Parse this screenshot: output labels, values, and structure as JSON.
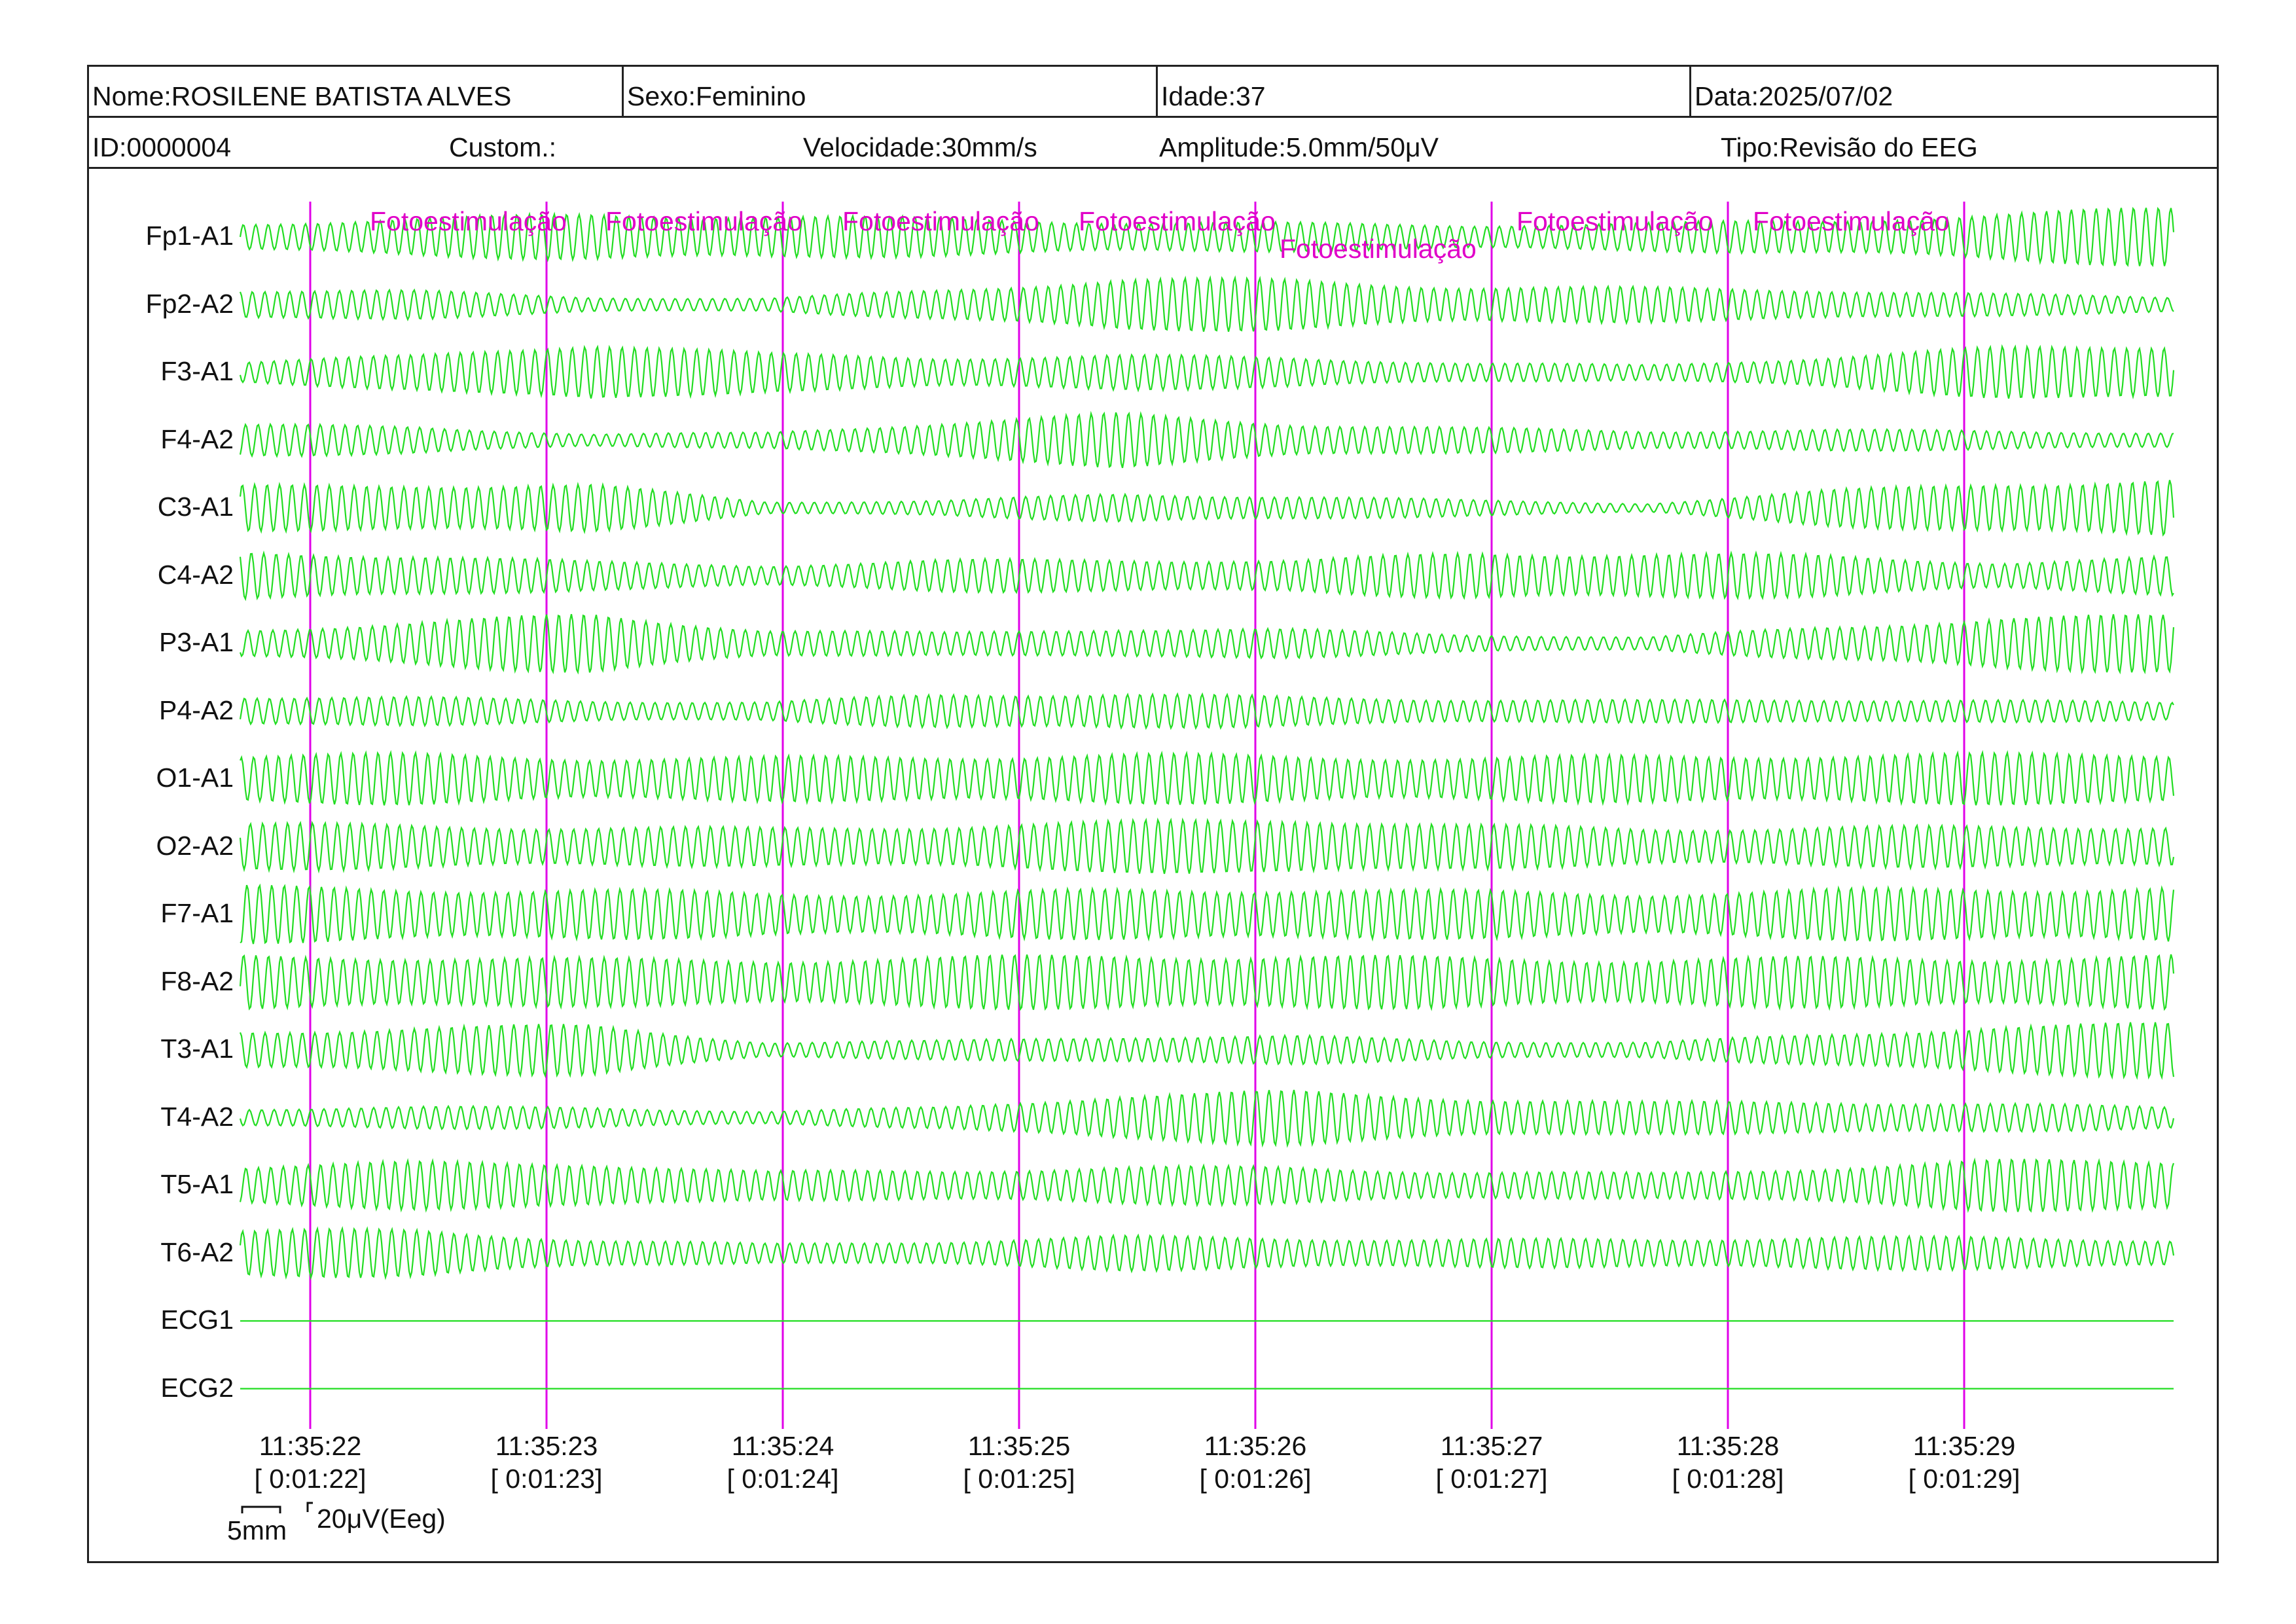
{
  "header": {
    "nome": "Nome:ROSILENE BATISTA ALVES",
    "sexo": "Sexo:Feminino",
    "idade": "Idade:37",
    "data": "Data:2025/07/02",
    "id": "ID:0000004",
    "custom": "Custom.:",
    "velocidade": "Velocidade:30mm/s",
    "amplitude": "Amplitude:5.0mm/50μV",
    "tipo": "Tipo:Revisão do EEG"
  },
  "channels": [
    {
      "label": "Fp1-A1",
      "amp": [
        0.45,
        0.6,
        0.75,
        0.7,
        0.6,
        0.5,
        0.45,
        0.4,
        0.45,
        0.55,
        0.75,
        0.95
      ]
    },
    {
      "label": "Fp2-A2",
      "amp": [
        0.5,
        0.45,
        0.25,
        0.2,
        0.5,
        0.85,
        0.8,
        0.6,
        0.55,
        0.5,
        0.35,
        0.25
      ]
    },
    {
      "label": "F3-A1",
      "amp": [
        0.35,
        0.55,
        1.0,
        0.6,
        0.5,
        0.55,
        0.5,
        0.3,
        0.25,
        0.5,
        0.8,
        0.95
      ]
    },
    {
      "label": "F4-A2",
      "amp": [
        0.5,
        0.45,
        0.2,
        0.25,
        0.6,
        0.85,
        0.55,
        0.4,
        0.3,
        0.35,
        0.3,
        0.25
      ]
    },
    {
      "label": "C3-A1",
      "amp": [
        0.7,
        0.8,
        0.75,
        0.2,
        0.25,
        0.45,
        0.4,
        0.25,
        0.15,
        0.55,
        0.85,
        0.9
      ]
    },
    {
      "label": "C4-A2",
      "amp": [
        0.75,
        0.7,
        0.45,
        0.35,
        0.5,
        0.55,
        0.5,
        0.75,
        0.75,
        0.65,
        0.45,
        0.6
      ]
    },
    {
      "label": "P3-A1",
      "amp": [
        0.45,
        0.7,
        0.95,
        0.45,
        0.35,
        0.5,
        0.45,
        0.3,
        0.2,
        0.55,
        0.85,
        0.9
      ]
    },
    {
      "label": "P4-A2",
      "amp": [
        0.5,
        0.45,
        0.35,
        0.3,
        0.55,
        0.6,
        0.45,
        0.4,
        0.35,
        0.4,
        0.35,
        0.3
      ]
    },
    {
      "label": "O1-A1",
      "amp": [
        0.8,
        0.8,
        0.7,
        0.7,
        0.75,
        0.8,
        0.75,
        0.7,
        0.75,
        0.8,
        0.8,
        0.85
      ]
    },
    {
      "label": "O2-A2",
      "amp": [
        0.75,
        0.7,
        0.65,
        0.6,
        0.7,
        0.8,
        0.95,
        0.7,
        0.6,
        0.65,
        0.65,
        0.7
      ]
    },
    {
      "label": "F7-A1",
      "amp": [
        0.9,
        0.85,
        0.8,
        0.7,
        0.7,
        0.8,
        0.85,
        0.75,
        0.7,
        0.8,
        0.85,
        0.9
      ]
    },
    {
      "label": "F8-A2",
      "amp": [
        0.85,
        0.85,
        0.75,
        0.75,
        0.8,
        0.9,
        0.85,
        0.8,
        0.75,
        0.8,
        0.8,
        0.85
      ]
    },
    {
      "label": "T3-A1",
      "amp": [
        0.6,
        0.75,
        0.8,
        0.25,
        0.3,
        0.45,
        0.45,
        0.3,
        0.25,
        0.5,
        0.8,
        0.85
      ]
    },
    {
      "label": "T4-A2",
      "amp": [
        0.3,
        0.35,
        0.35,
        0.2,
        0.35,
        0.75,
        0.85,
        0.65,
        0.5,
        0.55,
        0.45,
        0.35
      ]
    },
    {
      "label": "T5-A1",
      "amp": [
        0.65,
        0.75,
        0.75,
        0.45,
        0.5,
        0.6,
        0.6,
        0.45,
        0.4,
        0.6,
        0.8,
        0.85
      ]
    },
    {
      "label": "T6-A2",
      "amp": [
        0.75,
        0.75,
        0.45,
        0.3,
        0.4,
        0.55,
        0.5,
        0.45,
        0.45,
        0.55,
        0.5,
        0.45
      ]
    },
    {
      "label": "ECG1",
      "amp": [
        0,
        0,
        0,
        0,
        0,
        0,
        0,
        0,
        0,
        0,
        0,
        0
      ]
    },
    {
      "label": "ECG2",
      "amp": [
        0,
        0,
        0,
        0,
        0,
        0,
        0,
        0,
        0,
        0,
        0,
        0
      ]
    }
  ],
  "annotations": [
    {
      "text": "Fotoestimulação"
    },
    {
      "text": "Fotoestimulação"
    },
    {
      "text": "Fotoestimulação"
    },
    {
      "text": "Fotoestimulação"
    },
    {
      "text": "Fotoestimulação"
    },
    {
      "text": "Fotoestimulação"
    },
    {
      "text": "Fotoestimulação"
    }
  ],
  "time_markers": [
    {
      "time": "11:35:22",
      "elapsed": "[ 0:01:22]"
    },
    {
      "time": "11:35:23",
      "elapsed": "[ 0:01:23]"
    },
    {
      "time": "11:35:24",
      "elapsed": "[ 0:01:24]"
    },
    {
      "time": "11:35:25",
      "elapsed": "[ 0:01:25]"
    },
    {
      "time": "11:35:26",
      "elapsed": "[ 0:01:26]"
    },
    {
      "time": "11:35:27",
      "elapsed": "[ 0:01:27]"
    },
    {
      "time": "11:35:28",
      "elapsed": "[ 0:01:28]"
    },
    {
      "time": "11:35:29",
      "elapsed": "[ 0:01:29]"
    }
  ],
  "scale": {
    "time": "5mm",
    "amplitude": "20μV(Eeg)"
  },
  "colors": {
    "trace": "#22dd22",
    "marker": "#e000e8",
    "annotation": "#e000c8",
    "border": "#222222"
  }
}
